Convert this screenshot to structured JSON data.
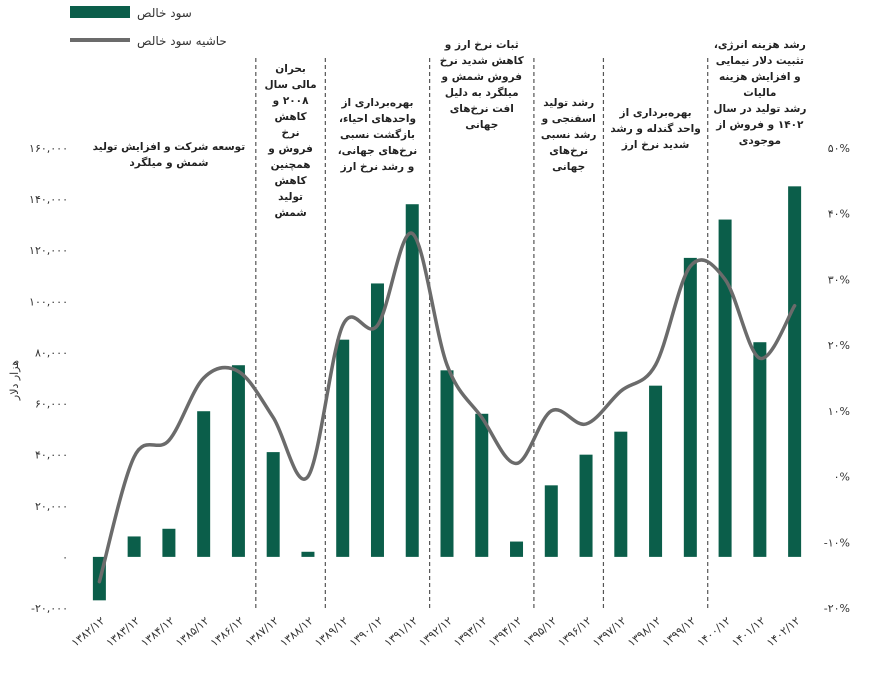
{
  "chart_data": {
    "type": "bar",
    "title": "",
    "xlabel": "",
    "ylabel": "هزار دلار",
    "ylim": [
      -20000,
      160000
    ],
    "y2lim": [
      -20,
      50
    ],
    "grid": false,
    "legend_position": "top-left",
    "categories": [
      "۱۳۸۲/۱۲",
      "۱۳۸۳/۱۲",
      "۱۳۸۴/۱۲",
      "۱۳۸۵/۱۲",
      "۱۳۸۶/۱۲",
      "۱۳۸۷/۱۲",
      "۱۳۸۸/۱۲",
      "۱۳۸۹/۱۲",
      "۱۳۹۰/۱۲",
      "۱۳۹۱/۱۲",
      "۱۳۹۲/۱۲",
      "۱۳۹۳/۱۲",
      "۱۳۹۴/۱۲",
      "۱۳۹۵/۱۲",
      "۱۳۹۶/۱۲",
      "۱۳۹۷/۱۲",
      "۱۳۹۸/۱۲",
      "۱۳۹۹/۱۲",
      "۱۴۰۰/۱۲",
      "۱۴۰۱/۱۲",
      "۱۴۰۲/۱۲"
    ],
    "series": [
      {
        "name": "سود خالص",
        "type": "bar",
        "axis": "left",
        "color": "#0b5e4a",
        "values": [
          -17000,
          8000,
          11000,
          57000,
          75000,
          41000,
          2000,
          85000,
          107000,
          138000,
          73000,
          56000,
          6000,
          28000,
          40000,
          49000,
          67000,
          117000,
          132000,
          84000,
          145000
        ]
      },
      {
        "name": "حاشیه سود خالص",
        "type": "line",
        "axis": "right",
        "color": "#6b6b6b",
        "values": [
          -16,
          3,
          5.5,
          15,
          16,
          9,
          0,
          23,
          23,
          37,
          17,
          9,
          2,
          10,
          8,
          13,
          17,
          32,
          30,
          18,
          26
        ]
      }
    ],
    "y_ticks": [
      "-۲۰,۰۰۰",
      "۰",
      "۲۰,۰۰۰",
      "۴۰,۰۰۰",
      "۶۰,۰۰۰",
      "۸۰,۰۰۰",
      "۱۰۰,۰۰۰",
      "۱۲۰,۰۰۰",
      "۱۴۰,۰۰۰",
      "۱۶۰,۰۰۰"
    ],
    "y2_ticks": [
      "-۲۰%",
      "-۱۰%",
      "۰%",
      "۱۰%",
      "۲۰%",
      "۳۰%",
      "۴۰%",
      "۵۰%"
    ],
    "section_dividers_after_index": [
      4,
      6,
      9,
      12,
      14,
      17
    ],
    "annotations": [
      {
        "start": 0,
        "end": 4,
        "lines": [
          "توسعه شرکت و افزایش تولید",
          "شمش و میلگرد"
        ]
      },
      {
        "start": 5,
        "end": 6,
        "lines": [
          "بحران",
          "مالی سال",
          "۲۰۰۸ و",
          "کاهش",
          "نرخ",
          "فروش و",
          "همچنین",
          "کاهش",
          "تولید",
          "شمش"
        ]
      },
      {
        "start": 7,
        "end": 9,
        "lines": [
          "بهره‌برداری از",
          "واحدهای احیاء،",
          "بازگشت نسبی",
          "نرخ‌های جهانی،",
          "و رشد نرخ ارز"
        ]
      },
      {
        "start": 10,
        "end": 12,
        "lines": [
          "ثبات نرخ ارز و",
          "کاهش شدید نرخ",
          "فروش شمش و",
          "میلگرد به دلیل",
          "افت نرخ‌های",
          "جهانی"
        ]
      },
      {
        "start": 13,
        "end": 14,
        "lines": [
          "رشد تولید",
          "اسفنجی و",
          "رشد نسبی",
          "نرخ‌های",
          "جهانی"
        ]
      },
      {
        "start": 15,
        "end": 17,
        "lines": [
          "بهره‌برداری از",
          "واحد گندله و رشد",
          "شدید نرخ ارز"
        ]
      },
      {
        "start": 18,
        "end": 20,
        "lines": [
          "رشد هزینه انرژی،",
          "تثبیت دلار نیمایی",
          "و افزایش هزینه",
          "مالیات",
          "رشد تولید در سال",
          "۱۴۰۲ و فروش از",
          "موجودی"
        ]
      }
    ]
  }
}
